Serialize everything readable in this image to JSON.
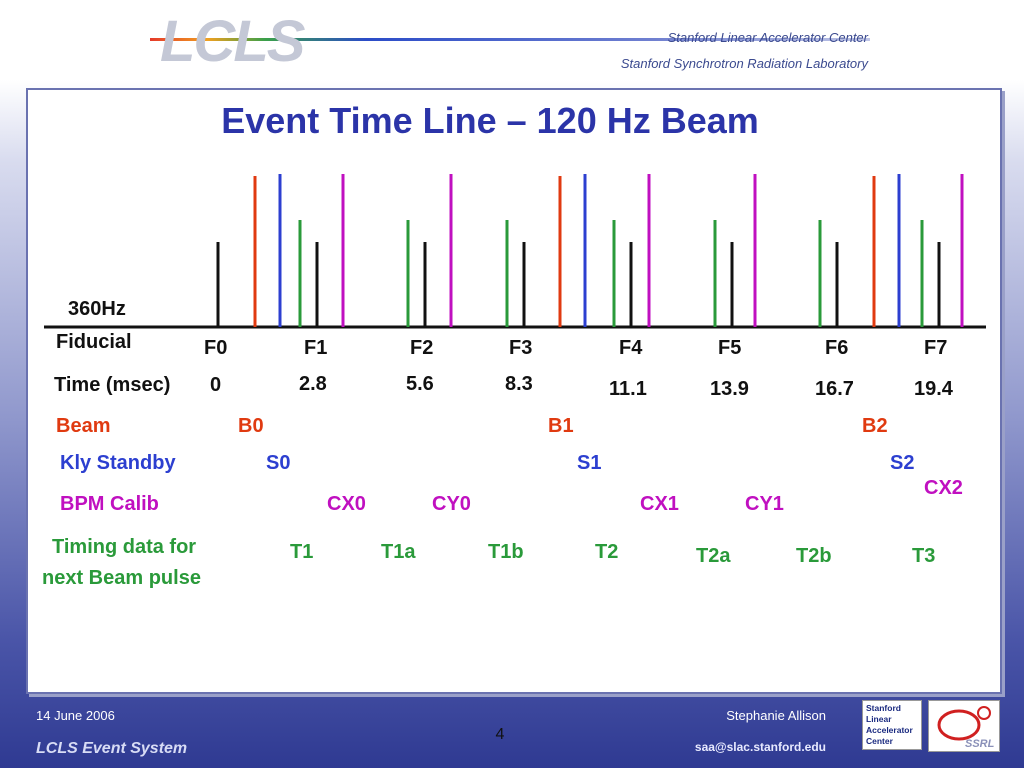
{
  "header": {
    "logo_text": "LCLS",
    "institution_line1": "Stanford Linear Accelerator Center",
    "institution_line2": "Stanford Synchrotron Radiation Laboratory"
  },
  "slide": {
    "title": "Event Time Line – 120 Hz Beam",
    "fiducial_label_line1": "360Hz",
    "fiducial_label_line2": "Fiducial",
    "fiducials": [
      "F0",
      "F1",
      "F2",
      "F3",
      "F4",
      "F5",
      "F6",
      "F7"
    ],
    "time_label": "Time (msec)",
    "times": [
      "0",
      "2.8",
      "5.6",
      "8.3",
      "11.1",
      "13.9",
      "16.7",
      "19.4"
    ],
    "rows": {
      "beam": {
        "label": "Beam",
        "events": [
          "B0",
          "B1",
          "B2"
        ]
      },
      "kly_standby": {
        "label": "Kly Standby",
        "events": [
          "S0",
          "S1",
          "S2"
        ]
      },
      "bpm_calib": {
        "label": "BPM Calib",
        "events": [
          "CX0",
          "CY0",
          "CX1",
          "CY1",
          "CX2"
        ]
      },
      "timing": {
        "label_line1": "Timing data for",
        "label_line2": "next Beam pulse",
        "events": [
          "T1",
          "T1a",
          "T1b",
          "T2",
          "T2a",
          "T2b",
          "T3"
        ]
      }
    }
  },
  "footer": {
    "date": "14 June 2006",
    "author": "Stephanie Allison",
    "system": "LCLS Event System",
    "page": "4",
    "email": "saa@slac.stanford.edu",
    "slac_logo_lines": [
      "Stanford",
      "Linear",
      "Accelerator",
      "Center"
    ],
    "ssrl_logo_text": "SSRL"
  },
  "colors": {
    "fiducial": "#111111",
    "beam": "#e03a10",
    "kly_standby": "#2c3fd0",
    "bpm_calib": "#c010c0",
    "timing": "#2a9a3a",
    "title": "#2b34a8"
  }
}
